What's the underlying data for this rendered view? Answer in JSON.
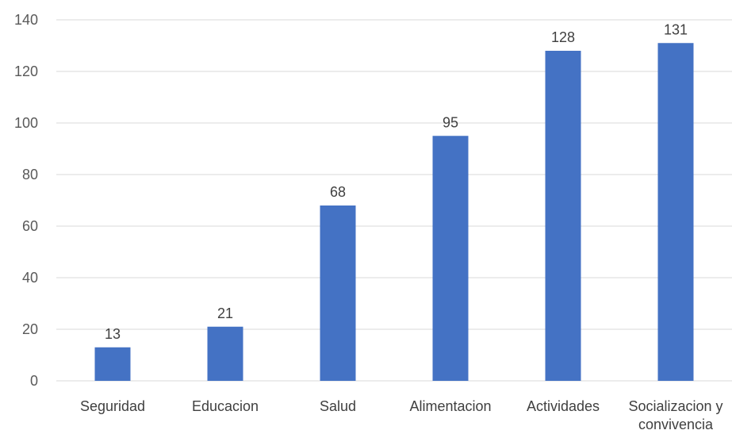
{
  "chart_data": {
    "type": "bar",
    "categories": [
      "Seguridad",
      "Educacion",
      "Salud",
      "Alimentacion",
      "Actividades",
      "Socializacion y convivencia"
    ],
    "category_lines": [
      [
        "Seguridad"
      ],
      [
        "Educacion"
      ],
      [
        "Salud"
      ],
      [
        "Alimentacion"
      ],
      [
        "Actividades"
      ],
      [
        "Socializacion y",
        "convivencia"
      ]
    ],
    "values": [
      13,
      21,
      68,
      95,
      128,
      131
    ],
    "data_labels": [
      "13",
      "21",
      "68",
      "95",
      "128",
      "131"
    ],
    "yticks": [
      "0",
      "20",
      "40",
      "60",
      "80",
      "100",
      "120",
      "140"
    ],
    "ylim": [
      0,
      140
    ],
    "grid": true,
    "legend": "none",
    "bar_color": "#4472c4",
    "title": "",
    "xlabel": "",
    "ylabel": ""
  }
}
